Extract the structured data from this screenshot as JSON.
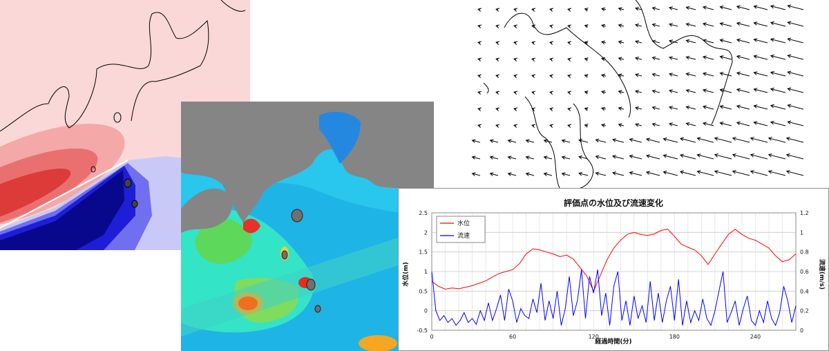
{
  "chart_data": {
    "type": "line",
    "title": "評価点の水位及び流速変化",
    "xlabel": "経過時間(分)",
    "ylabel_left": "水位(m)",
    "ylabel_right": "流速(m/s)",
    "x_ticks": [
      0,
      60,
      120,
      180,
      240
    ],
    "xlim": [
      0,
      270
    ],
    "ylim_left": [
      -0.5,
      2.5
    ],
    "y_ticks_left": [
      -0.5,
      0,
      0.5,
      1,
      1.5,
      2,
      2.5
    ],
    "ylim_right": [
      0,
      1.2
    ],
    "y_ticks_right": [
      0,
      0.2,
      0.4,
      0.6,
      0.8,
      1,
      1.2
    ],
    "grid": true,
    "legend_position": "top-left",
    "series": [
      {
        "name": "水位",
        "axis": "left",
        "color": "#ff0000",
        "x": [
          0,
          5,
          10,
          15,
          20,
          25,
          30,
          35,
          40,
          45,
          50,
          55,
          60,
          65,
          70,
          75,
          80,
          85,
          90,
          95,
          100,
          105,
          110,
          115,
          120,
          125,
          130,
          135,
          140,
          145,
          150,
          155,
          160,
          165,
          170,
          175,
          180,
          185,
          190,
          195,
          200,
          205,
          210,
          215,
          220,
          225,
          230,
          235,
          240,
          245,
          250,
          255,
          260,
          265,
          270
        ],
        "values": [
          0.75,
          0.62,
          0.55,
          0.58,
          0.56,
          0.6,
          0.64,
          0.7,
          0.76,
          0.86,
          0.95,
          1.0,
          1.05,
          1.2,
          1.45,
          1.58,
          1.55,
          1.5,
          1.45,
          1.38,
          1.42,
          1.32,
          1.1,
          0.88,
          0.5,
          0.9,
          1.3,
          1.6,
          1.8,
          1.95,
          2.0,
          1.95,
          1.92,
          1.96,
          2.05,
          2.08,
          1.9,
          1.7,
          1.62,
          1.55,
          1.4,
          1.18,
          1.45,
          1.7,
          1.95,
          2.08,
          1.95,
          1.85,
          1.8,
          1.7,
          1.6,
          1.4,
          1.25,
          1.3,
          1.45
        ]
      },
      {
        "name": "流速",
        "axis": "right",
        "color": "#0000ff",
        "x": [
          0,
          3,
          6,
          9,
          12,
          15,
          18,
          21,
          24,
          27,
          30,
          33,
          36,
          39,
          42,
          45,
          48,
          51,
          54,
          57,
          60,
          63,
          66,
          69,
          72,
          75,
          78,
          81,
          84,
          87,
          90,
          93,
          96,
          99,
          102,
          105,
          108,
          111,
          114,
          117,
          120,
          123,
          126,
          129,
          132,
          135,
          138,
          141,
          144,
          147,
          150,
          153,
          156,
          159,
          162,
          165,
          168,
          171,
          174,
          177,
          180,
          183,
          186,
          189,
          192,
          195,
          198,
          201,
          204,
          207,
          210,
          213,
          216,
          219,
          222,
          225,
          228,
          231,
          234,
          237,
          240,
          243,
          246,
          249,
          252,
          255,
          258,
          261,
          264,
          267,
          270
        ],
        "values": [
          0.6,
          0.2,
          0.1,
          0.15,
          0.08,
          0.12,
          0.05,
          0.1,
          0.18,
          0.08,
          0.12,
          0.06,
          0.2,
          0.1,
          0.28,
          0.1,
          0.22,
          0.36,
          0.1,
          0.42,
          0.3,
          0.08,
          0.22,
          0.15,
          0.12,
          0.32,
          0.18,
          0.48,
          0.1,
          0.3,
          0.12,
          0.4,
          0.05,
          0.22,
          0.55,
          0.15,
          0.3,
          0.62,
          0.12,
          0.55,
          0.38,
          0.62,
          0.15,
          0.38,
          0.05,
          0.45,
          0.6,
          0.1,
          0.3,
          0.05,
          0.35,
          0.12,
          0.25,
          0.08,
          0.5,
          0.1,
          0.38,
          0.08,
          0.3,
          0.45,
          0.1,
          0.52,
          0.05,
          0.3,
          0.08,
          0.2,
          0.1,
          0.32,
          0.12,
          0.05,
          0.2,
          0.4,
          0.6,
          0.08,
          0.18,
          0.3,
          0.05,
          0.22,
          0.35,
          0.1,
          0.05,
          0.2,
          0.08,
          0.3,
          0.12,
          0.05,
          0.18,
          0.45,
          0.3,
          0.08,
          0.25
        ]
      }
    ]
  }
}
